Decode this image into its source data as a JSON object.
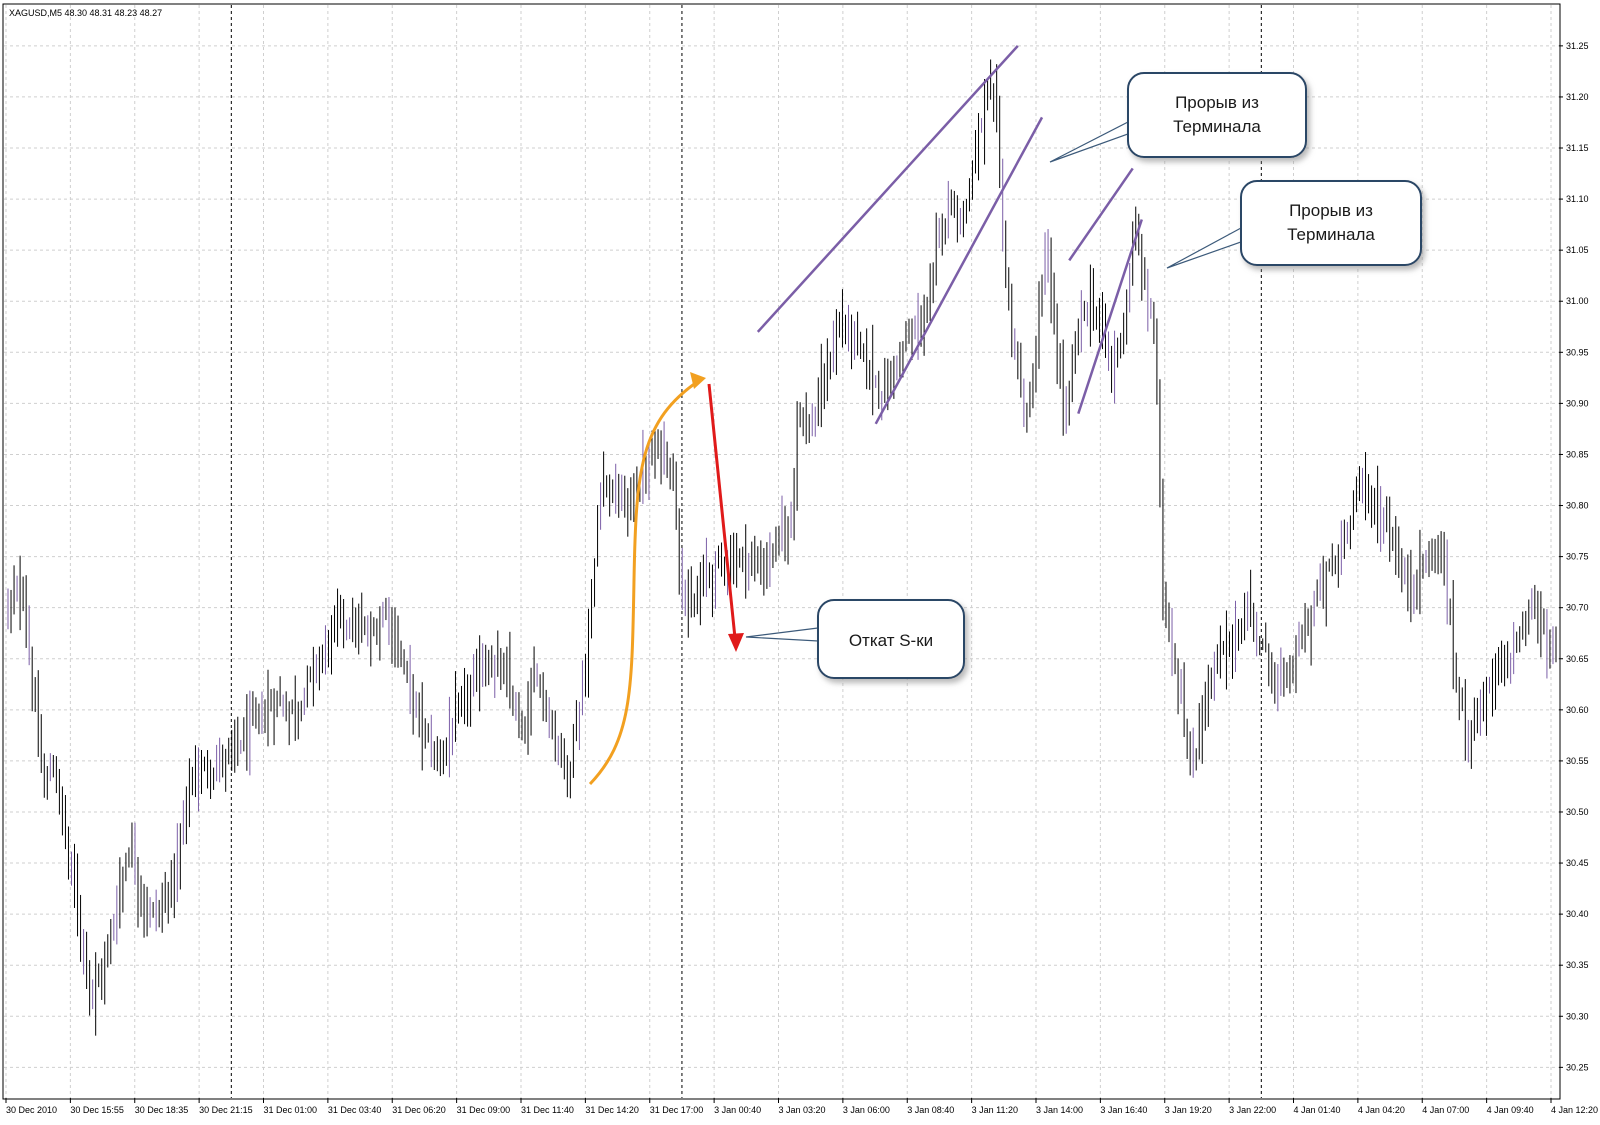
{
  "header": {
    "symbol_info": "XAGUSD,M5  48.30 48.31 48.23 48.27"
  },
  "chart_data": {
    "type": "bar",
    "symbol": "XAGUSD",
    "timeframe": "M5",
    "ylim": [
      30.22,
      31.29
    ],
    "y_ticks": [
      "31.25",
      "31.20",
      "31.15",
      "31.10",
      "31.05",
      "31.00",
      "30.95",
      "30.90",
      "30.85",
      "30.80",
      "30.75",
      "30.70",
      "30.65",
      "30.60",
      "30.55",
      "30.50",
      "30.45",
      "30.40",
      "30.35",
      "30.30",
      "30.25"
    ],
    "x_ticks": [
      "30 Dec 2010",
      "30 Dec 15:55",
      "30 Dec 18:35",
      "30 Dec 21:15",
      "31 Dec 01:00",
      "31 Dec 03:40",
      "31 Dec 06:20",
      "31 Dec 09:00",
      "31 Dec 11:40",
      "31 Dec 14:20",
      "31 Dec 17:00",
      "3 Jan 00:40",
      "3 Jan 03:20",
      "3 Jan 06:00",
      "3 Jan 08:40",
      "3 Jan 11:20",
      "3 Jan 14:00",
      "3 Jan 16:40",
      "3 Jan 19:20",
      "3 Jan 22:00",
      "4 Jan 01:40",
      "4 Jan 04:20",
      "4 Jan 07:00",
      "4 Jan 09:40",
      "4 Jan 12:20"
    ],
    "separator_after_tick": [
      3,
      10,
      19
    ],
    "grid": true,
    "price_path": [
      [
        0,
        30.7
      ],
      [
        5,
        30.72
      ],
      [
        8,
        30.62
      ],
      [
        12,
        30.52
      ],
      [
        15,
        30.55
      ],
      [
        22,
        30.42
      ],
      [
        28,
        30.32
      ],
      [
        32,
        30.35
      ],
      [
        40,
        30.47
      ],
      [
        46,
        30.4
      ],
      [
        50,
        30.4
      ],
      [
        56,
        30.45
      ],
      [
        60,
        30.53
      ],
      [
        64,
        30.54
      ],
      [
        72,
        30.55
      ],
      [
        80,
        30.58
      ],
      [
        88,
        30.61
      ],
      [
        95,
        30.6
      ],
      [
        100,
        30.63
      ],
      [
        110,
        30.69
      ],
      [
        120,
        30.67
      ],
      [
        125,
        30.7
      ],
      [
        130,
        30.65
      ],
      [
        137,
        30.58
      ],
      [
        142,
        30.55
      ],
      [
        150,
        30.6
      ],
      [
        158,
        30.65
      ],
      [
        165,
        30.63
      ],
      [
        170,
        30.57
      ],
      [
        175,
        30.64
      ],
      [
        180,
        30.58
      ],
      [
        185,
        30.54
      ],
      [
        190,
        30.62
      ],
      [
        193,
        30.7
      ],
      [
        196,
        30.83
      ],
      [
        200,
        30.81
      ],
      [
        205,
        30.8
      ],
      [
        210,
        30.83
      ],
      [
        216,
        30.86
      ],
      [
        220,
        30.83
      ],
      [
        223,
        30.72
      ],
      [
        226,
        30.69
      ],
      [
        230,
        30.73
      ],
      [
        240,
        30.75
      ],
      [
        250,
        30.74
      ],
      [
        256,
        30.77
      ],
      [
        259,
        30.78
      ],
      [
        261,
        30.9
      ],
      [
        265,
        30.87
      ],
      [
        270,
        30.92
      ],
      [
        275,
        30.98
      ],
      [
        280,
        30.96
      ],
      [
        285,
        30.93
      ],
      [
        290,
        30.91
      ],
      [
        295,
        30.95
      ],
      [
        300,
        30.97
      ],
      [
        305,
        31.0
      ],
      [
        308,
        31.07
      ],
      [
        312,
        31.1
      ],
      [
        316,
        31.08
      ],
      [
        320,
        31.15
      ],
      [
        324,
        31.2
      ],
      [
        327,
        31.18
      ],
      [
        330,
        31.02
      ],
      [
        334,
        30.93
      ],
      [
        337,
        30.88
      ],
      [
        340,
        30.95
      ],
      [
        343,
        31.05
      ],
      [
        347,
        30.95
      ],
      [
        350,
        30.88
      ],
      [
        354,
        30.98
      ],
      [
        358,
        31.0
      ],
      [
        362,
        30.97
      ],
      [
        365,
        30.93
      ],
      [
        369,
        30.98
      ],
      [
        373,
        31.07
      ],
      [
        376,
        31.01
      ],
      [
        379,
        30.98
      ],
      [
        382,
        30.72
      ],
      [
        385,
        30.66
      ],
      [
        388,
        30.62
      ],
      [
        391,
        30.53
      ],
      [
        395,
        30.6
      ],
      [
        400,
        30.65
      ],
      [
        404,
        30.66
      ],
      [
        410,
        30.7
      ],
      [
        416,
        30.65
      ],
      [
        422,
        30.62
      ],
      [
        428,
        30.67
      ],
      [
        434,
        30.72
      ],
      [
        440,
        30.75
      ],
      [
        446,
        30.82
      ],
      [
        452,
        30.8
      ],
      [
        458,
        30.77
      ],
      [
        462,
        30.72
      ],
      [
        468,
        30.74
      ],
      [
        474,
        30.76
      ],
      [
        478,
        30.65
      ],
      [
        482,
        30.58
      ],
      [
        486,
        30.6
      ],
      [
        492,
        30.63
      ],
      [
        498,
        30.66
      ],
      [
        504,
        30.7
      ],
      [
        508,
        30.68
      ],
      [
        512,
        30.65
      ]
    ],
    "trend_lines": [
      {
        "color": "#7b5ea7",
        "from": [
          248,
          30.97
        ],
        "to": [
          334,
          31.25
        ]
      },
      {
        "color": "#7b5ea7",
        "from": [
          287,
          30.88
        ],
        "to": [
          342,
          31.18
        ]
      },
      {
        "color": "#7b5ea7",
        "from": [
          351,
          31.04
        ],
        "to": [
          372,
          31.13
        ]
      },
      {
        "color": "#7b5ea7",
        "from": [
          354,
          30.89
        ],
        "to": [
          375,
          31.08
        ]
      }
    ]
  },
  "callouts": [
    {
      "line1": "Прорыв из",
      "line2": "Терминала"
    },
    {
      "line1": "Прорыв из",
      "line2": "Терминала"
    },
    {
      "line1": "Откат S-ки",
      "line2": ""
    }
  ]
}
